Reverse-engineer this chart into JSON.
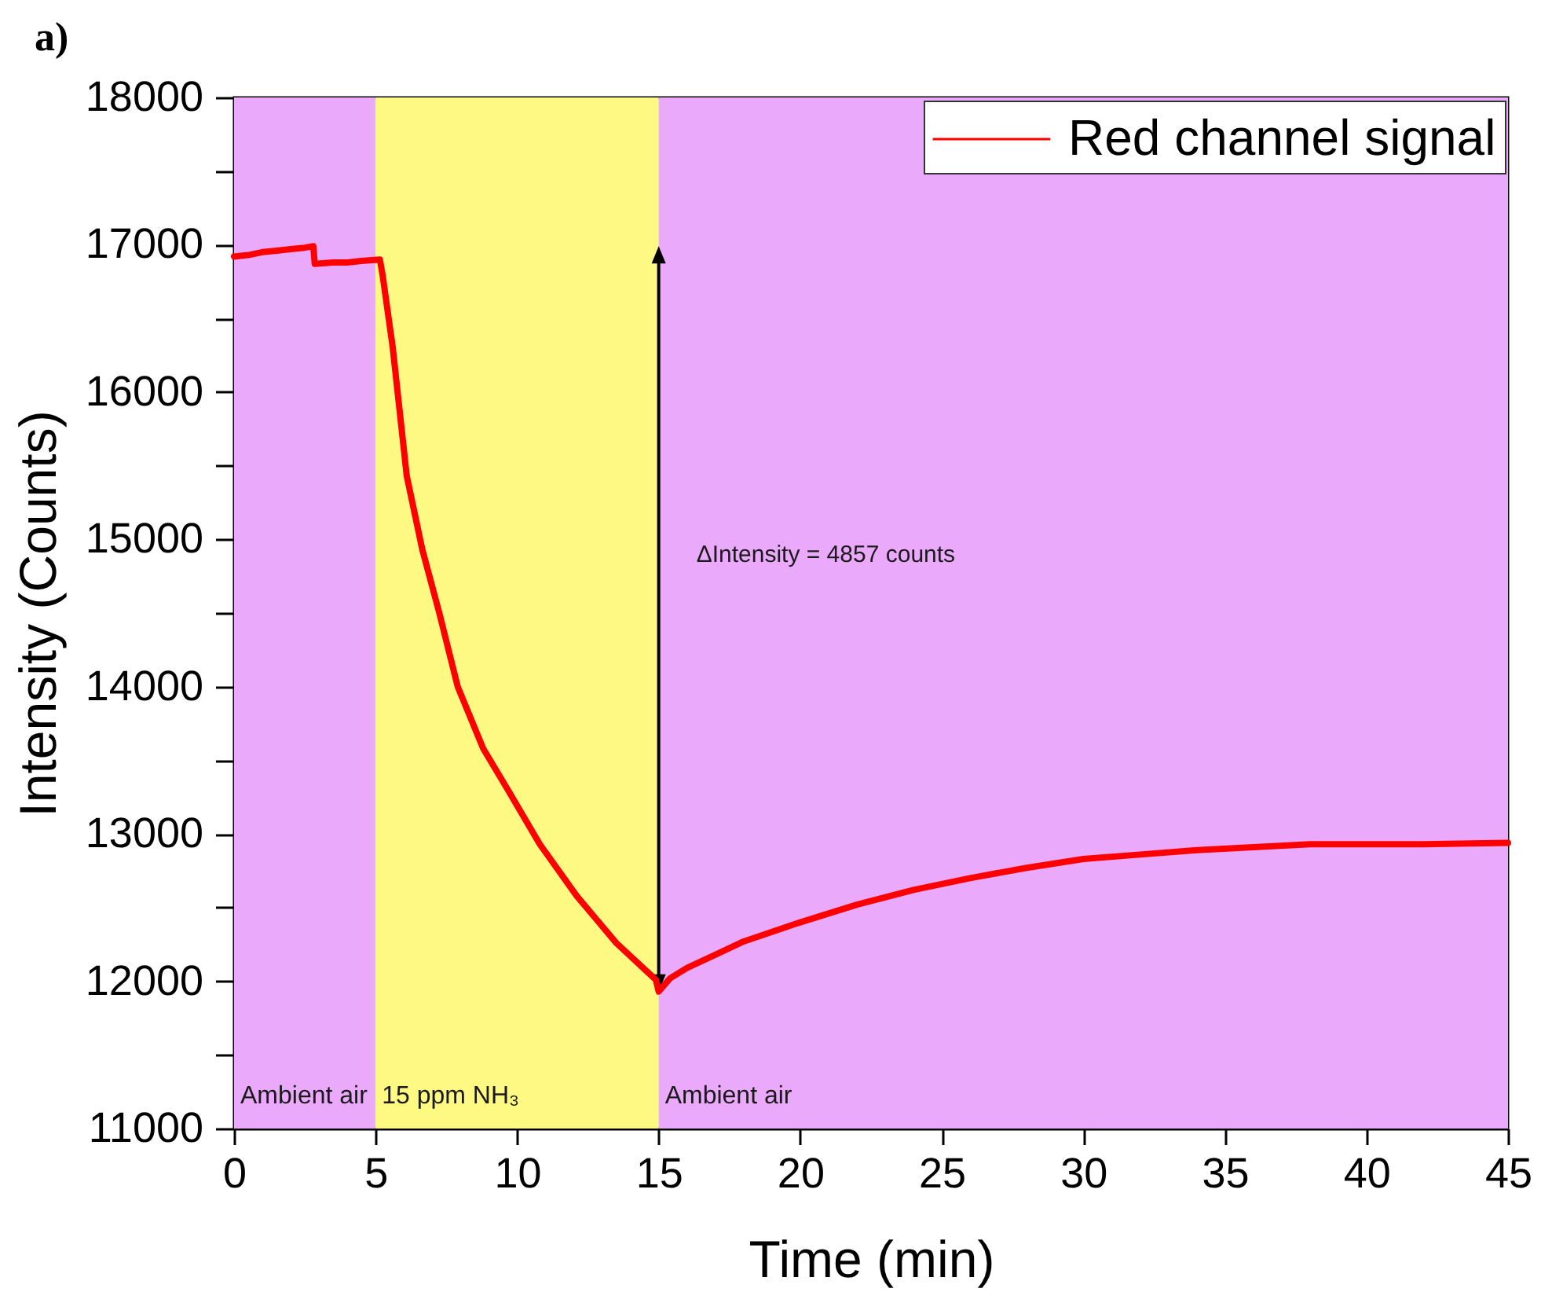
{
  "chart_data": {
    "type": "line",
    "title": "a)",
    "xlabel": "Time (min)",
    "ylabel": "Intensity (Counts)",
    "x": [
      0,
      0.5,
      1,
      1.5,
      2,
      2.5,
      2.8,
      2.85,
      3.5,
      4,
      4.5,
      5.15,
      5.25,
      5.6,
      6.1,
      6.65,
      7.25,
      7.9,
      8.8,
      9.7,
      10.8,
      12.1,
      13.5,
      14.9,
      15,
      15.4,
      16,
      17,
      18,
      20,
      22,
      24,
      26,
      28,
      30,
      32,
      34,
      36,
      38,
      40,
      42,
      45
    ],
    "series": [
      {
        "name": "Red channel signal",
        "color": "#ff0000",
        "values": [
          16920,
          16930,
          16950,
          16960,
          16970,
          16980,
          16990,
          16870,
          16880,
          16880,
          16890,
          16900,
          16790,
          16310,
          15430,
          14930,
          14500,
          14000,
          13580,
          13290,
          12930,
          12580,
          12260,
          12010,
          11930,
          12020,
          12090,
          12180,
          12270,
          12400,
          12520,
          12620,
          12700,
          12770,
          12830,
          12860,
          12890,
          12910,
          12930,
          12930,
          12930,
          12940
        ]
      }
    ],
    "xlim": [
      0,
      45
    ],
    "ylim": [
      11000,
      18000
    ],
    "xticks": [
      0,
      5,
      10,
      15,
      20,
      25,
      30,
      35,
      40,
      45
    ],
    "yticks": [
      11000,
      {
        "value": 11500,
        "label": null
      },
      12000,
      {
        "value": 12500,
        "label": null
      },
      13000,
      {
        "value": 13500,
        "label": null
      },
      14000,
      {
        "value": 14500,
        "label": null
      },
      15000,
      {
        "value": 15500,
        "label": null
      },
      16000,
      {
        "value": 16500,
        "label": null
      },
      17000,
      {
        "value": 17500,
        "label": null
      },
      18000
    ],
    "bands": [
      {
        "axis": "x",
        "from": 0,
        "to": 5,
        "label": "Ambient air",
        "color": "#eaa9fa"
      },
      {
        "axis": "x",
        "from": 5,
        "to": 15,
        "label": "15 ppm NH₃",
        "color": "#fdf982"
      },
      {
        "axis": "x",
        "from": 15,
        "to": 45,
        "label": "Ambient air",
        "color": "#eaa9fa"
      }
    ],
    "annotations": [
      {
        "text": "ΔIntensity = 4857 counts",
        "x": 15,
        "y": 14900
      }
    ],
    "legend": "top right"
  }
}
